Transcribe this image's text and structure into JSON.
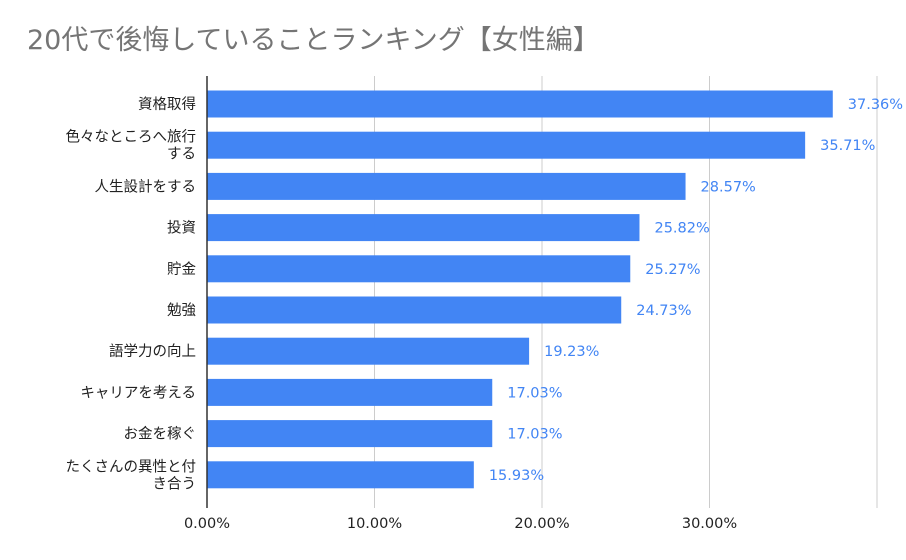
{
  "chart_data": {
    "type": "bar",
    "orientation": "horizontal",
    "title": "20代で後悔していることランキング【女性編】",
    "categories": [
      [
        "資格取得"
      ],
      [
        "色々なところへ旅行",
        "する"
      ],
      [
        "人生設計をする"
      ],
      [
        "投資"
      ],
      [
        "貯金"
      ],
      [
        "勉強"
      ],
      [
        "語学力の向上"
      ],
      [
        "キャリアを考える"
      ],
      [
        "お金を稼ぐ"
      ],
      [
        "たくさんの異性と付",
        "き合う"
      ]
    ],
    "values": [
      37.36,
      35.71,
      28.57,
      25.82,
      25.27,
      24.73,
      19.23,
      17.03,
      17.03,
      15.93
    ],
    "value_labels": [
      "37.36%",
      "35.71%",
      "28.57%",
      "25.82%",
      "25.27%",
      "24.73%",
      "19.23%",
      "17.03%",
      "17.03%",
      "15.93%"
    ],
    "x_ticks": [
      0,
      10,
      20,
      30
    ],
    "x_tick_labels": [
      "0.00%",
      "10.00%",
      "20.00%",
      "30.00%"
    ],
    "xlim": [
      0,
      40
    ],
    "grid": true,
    "bar_color": "#4285f4",
    "label_color": "#4285f4",
    "title_color": "#757575"
  }
}
